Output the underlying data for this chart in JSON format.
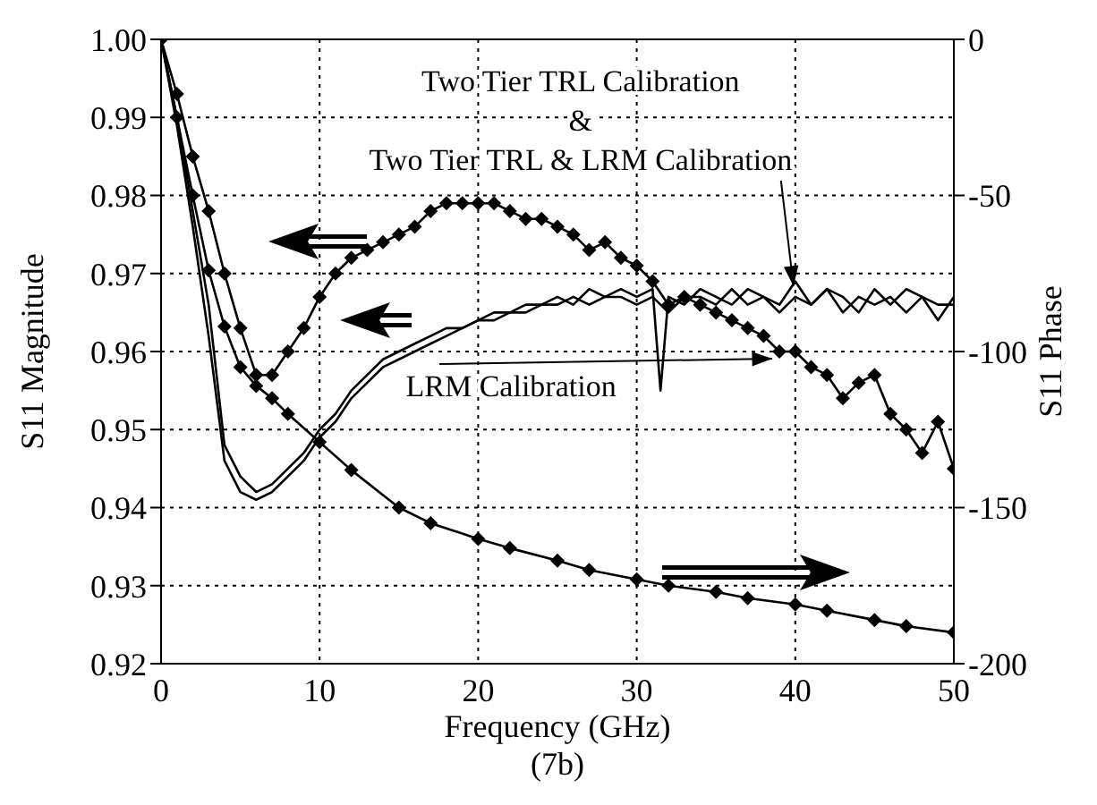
{
  "chart_data": {
    "type": "line",
    "xlabel": "Frequency (GHz)",
    "ylabel": "S11 Magnitude",
    "y2label": "S11 Phase",
    "annotations": [
      {
        "text": "Two Tier TRL Calibration\n&\nTwo Tier TRL & LRM Calibration",
        "x": 40,
        "y": 0.967
      },
      {
        "text": "LRM Calibration",
        "x": 39,
        "y": 0.96
      },
      "(7b)"
    ],
    "xlim": [
      0,
      50
    ],
    "xticks": [
      0,
      10,
      20,
      30,
      40,
      50
    ],
    "ylim": [
      0.92,
      1.0
    ],
    "yticks": [
      0.92,
      0.93,
      0.94,
      0.95,
      0.96,
      0.97,
      0.98,
      0.99,
      {
        "value": 1.0,
        "label": "1.00"
      }
    ],
    "y2lim": [
      -200,
      0
    ],
    "y2ticks": [
      -200,
      -150,
      -100,
      -50,
      0
    ],
    "grid": true,
    "line_style": "solid",
    "series": [
      {
        "color": "#000000",
        "marker": "diamond",
        "x": [
          0,
          1,
          2,
          3,
          4,
          5,
          6,
          7,
          8,
          9,
          10,
          11,
          12,
          13,
          14,
          15,
          16,
          17,
          18,
          19,
          20,
          21,
          22,
          23,
          24,
          25,
          26,
          27,
          28,
          29,
          30,
          31,
          32,
          33,
          34,
          35,
          36,
          37,
          38,
          39,
          40,
          41,
          42,
          43,
          44,
          45,
          46,
          47,
          48,
          49,
          50
        ],
        "values": [
          1.0,
          0.993,
          0.985,
          0.978,
          0.97,
          0.963,
          0.957,
          0.957,
          0.96,
          0.963,
          0.967,
          0.97,
          0.972,
          0.973,
          0.974,
          0.975,
          0.976,
          0.978,
          0.979,
          0.979,
          0.979,
          0.979,
          0.978,
          0.977,
          0.977,
          0.976,
          0.975,
          0.973,
          0.974,
          0.972,
          0.971,
          0.969,
          0.966,
          0.967,
          0.966,
          0.965,
          0.964,
          0.963,
          0.962,
          0.96,
          0.96,
          0.958,
          0.957,
          0.954,
          0.956,
          0.957,
          0.952,
          0.95,
          0.947,
          0.951,
          0.945
        ]
      },
      {
        "color": "#000000",
        "marker": "diamond",
        "axis": "y2",
        "x": [
          0,
          1,
          2,
          3,
          4,
          5,
          6,
          7,
          8,
          10,
          12,
          15,
          17,
          20,
          22,
          25,
          27,
          30,
          32,
          35,
          37,
          40,
          42,
          45,
          47,
          50
        ],
        "values": [
          0,
          -25,
          -50,
          -74,
          -92,
          -105,
          -111,
          -115,
          -120,
          -129,
          -138,
          -150,
          -155,
          -160,
          -163,
          -167,
          -170,
          -173,
          -175,
          -177,
          -179,
          -181,
          -183,
          -186,
          -188,
          -190
        ]
      },
      {
        "color": "#000000",
        "marker": "none",
        "x": [
          0,
          1,
          2,
          3,
          4,
          5,
          6,
          7,
          8,
          9,
          10,
          11,
          12,
          13,
          14,
          15,
          16,
          17,
          18,
          19,
          20,
          21,
          22,
          23,
          24,
          25,
          26,
          27,
          28,
          29,
          30,
          31,
          31.5,
          32,
          33,
          34,
          35,
          36,
          37,
          38,
          39,
          40,
          41,
          42,
          43,
          44,
          45,
          46,
          47,
          48,
          49,
          50
        ],
        "values": [
          1.0,
          0.99,
          0.978,
          0.966,
          0.948,
          0.944,
          0.942,
          0.943,
          0.945,
          0.947,
          0.95,
          0.952,
          0.955,
          0.957,
          0.959,
          0.96,
          0.961,
          0.962,
          0.963,
          0.963,
          0.964,
          0.965,
          0.965,
          0.966,
          0.966,
          0.967,
          0.966,
          0.968,
          0.967,
          0.968,
          0.967,
          0.968,
          0.955,
          0.967,
          0.966,
          0.968,
          0.967,
          0.966,
          0.968,
          0.967,
          0.966,
          0.969,
          0.966,
          0.968,
          0.967,
          0.965,
          0.968,
          0.966,
          0.968,
          0.967,
          0.964,
          0.967
        ]
      },
      {
        "color": "#000000",
        "marker": "none",
        "x": [
          0,
          1,
          2,
          3,
          4,
          5,
          6,
          7,
          8,
          9,
          10,
          11,
          12,
          13,
          14,
          15,
          16,
          17,
          18,
          19,
          20,
          21,
          22,
          23,
          24,
          25,
          26,
          27,
          28,
          29,
          30,
          31,
          32,
          33,
          34,
          35,
          36,
          37,
          38,
          39,
          40,
          41,
          42,
          43,
          44,
          45,
          46,
          47,
          48,
          49,
          50
        ],
        "values": [
          1.0,
          0.989,
          0.976,
          0.962,
          0.946,
          0.942,
          0.941,
          0.942,
          0.944,
          0.946,
          0.949,
          0.951,
          0.954,
          0.956,
          0.958,
          0.959,
          0.96,
          0.961,
          0.962,
          0.963,
          0.964,
          0.964,
          0.965,
          0.965,
          0.966,
          0.966,
          0.967,
          0.966,
          0.967,
          0.967,
          0.966,
          0.967,
          0.965,
          0.967,
          0.967,
          0.966,
          0.968,
          0.966,
          0.967,
          0.965,
          0.967,
          0.966,
          0.968,
          0.965,
          0.967,
          0.966,
          0.967,
          0.965,
          0.967,
          0.966,
          0.966
        ]
      }
    ]
  }
}
